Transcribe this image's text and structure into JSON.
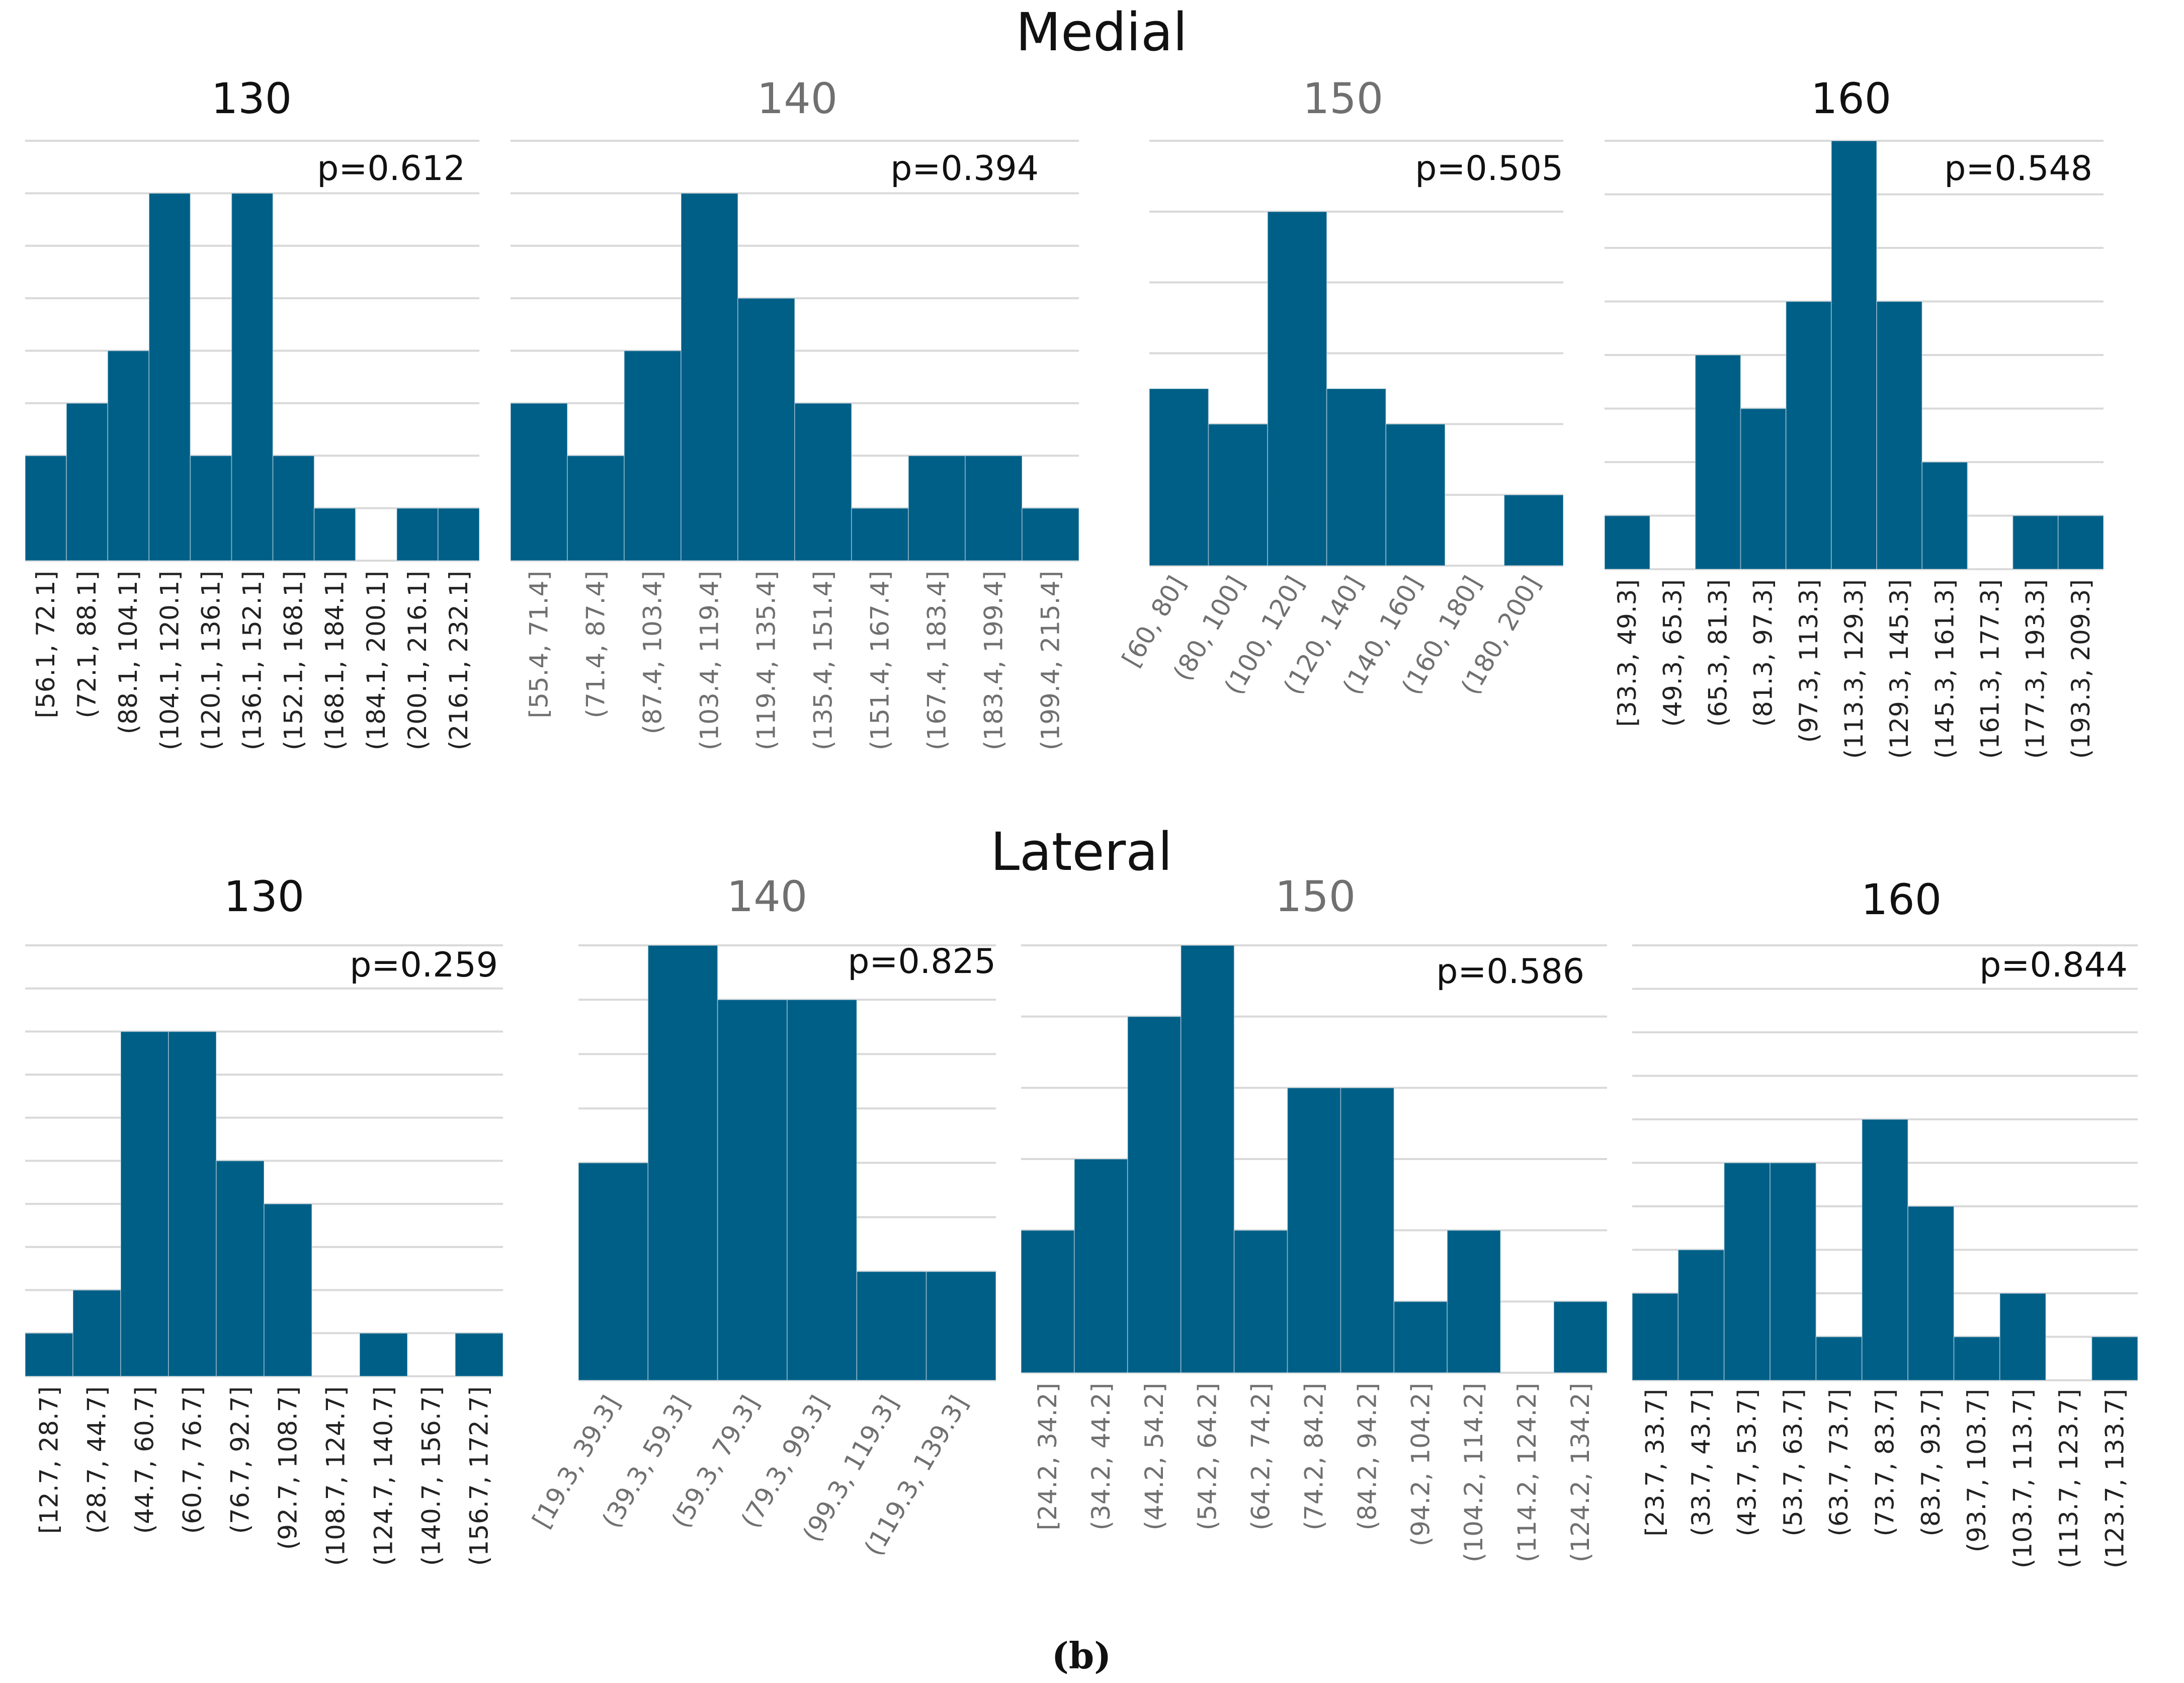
{
  "figure": {
    "caption_open": "(",
    "caption_letter": "b",
    "caption_close": ")"
  },
  "colors": {
    "bar": "#005f87",
    "grid": "#d9d9d9",
    "title_dark": "#111111",
    "title_gray": "#707070",
    "tick_dark": "#222222",
    "tick_gray": "#707070"
  },
  "sections": [
    {
      "title": "Medial"
    },
    {
      "title": "Lateral"
    }
  ],
  "chart_data": [
    {
      "type": "bar",
      "section": "Medial",
      "title": "130",
      "annotation": "p=0.612",
      "ylim": [
        0,
        8
      ],
      "grid": true,
      "categories": [
        "[56.1, 72.1]",
        "(72.1, 88.1]",
        "(88.1, 104.1]",
        "(104.1, 120.1]",
        "(120.1, 136.1]",
        "(136.1, 152.1]",
        "(152.1, 168.1]",
        "(168.1, 184.1]",
        "(184.1, 200.1]",
        "(200.1, 216.1]",
        "(216.1, 232.1]"
      ],
      "values": [
        2,
        3,
        4,
        7,
        2,
        7,
        2,
        1,
        0,
        1,
        1
      ]
    },
    {
      "type": "bar",
      "section": "Medial",
      "title": "140",
      "annotation": "p=0.394",
      "ylim": [
        0,
        8
      ],
      "grid": true,
      "categories": [
        "[55.4, 71.4]",
        "(71.4, 87.4]",
        "(87.4, 103.4]",
        "(103.4, 119.4]",
        "(119.4, 135.4]",
        "(135.4, 151.4]",
        "(151.4, 167.4]",
        "(167.4, 183.4]",
        "(183.4, 199.4]",
        "(199.4, 215.4]"
      ],
      "values": [
        3,
        2,
        4,
        7,
        5,
        3,
        1,
        2,
        2,
        1
      ]
    },
    {
      "type": "bar",
      "section": "Medial",
      "title": "150",
      "annotation": "p=0.505",
      "ylim": [
        0,
        6
      ],
      "grid": true,
      "categories": [
        "[60, 80]",
        "(80, 100]",
        "(100, 120]",
        "(120, 140]",
        "(140, 160]",
        "(160, 180]",
        "(180, 200]"
      ],
      "values": [
        2.5,
        2,
        5,
        2.5,
        2,
        0,
        1
      ]
    },
    {
      "type": "bar",
      "section": "Medial",
      "title": "160",
      "annotation": "p=0.548",
      "ylim": [
        0,
        8
      ],
      "grid": true,
      "categories": [
        "[33.3, 49.3]",
        "(49.3, 65.3]",
        "(65.3, 81.3]",
        "(81.3, 97.3]",
        "(97.3, 113.3]",
        "(113.3, 129.3]",
        "(129.3, 145.3]",
        "(145.3, 161.3]",
        "(161.3, 177.3]",
        "(177.3, 193.3]",
        "(193.3, 209.3]"
      ],
      "values": [
        1,
        0,
        4,
        3,
        5,
        8,
        5,
        2,
        0,
        1,
        1
      ]
    },
    {
      "type": "bar",
      "section": "Lateral",
      "title": "130",
      "annotation": "p=0.259",
      "ylim": [
        0,
        10
      ],
      "grid": true,
      "categories": [
        "[12.7, 28.7]",
        "(28.7, 44.7]",
        "(44.7, 60.7]",
        "(60.7, 76.7]",
        "(76.7, 92.7]",
        "(92.7, 108.7]",
        "(108.7, 124.7]",
        "(124.7, 140.7]",
        "(140.7, 156.7]",
        "(156.7, 172.7]"
      ],
      "values": [
        1,
        2,
        8,
        8,
        5,
        4,
        0,
        1,
        0,
        1
      ]
    },
    {
      "type": "bar",
      "section": "Lateral",
      "title": "140",
      "annotation": "p=0.825",
      "ylim": [
        0,
        8
      ],
      "grid": true,
      "categories": [
        "[19.3, 39.3]",
        "(39.3, 59.3]",
        "(59.3, 79.3]",
        "(79.3, 99.3]",
        "(99.3, 119.3]",
        "(119.3, 139.3]"
      ],
      "values": [
        4,
        8,
        7,
        7,
        2,
        2
      ]
    },
    {
      "type": "bar",
      "section": "Lateral",
      "title": "150",
      "annotation": "p=0.586",
      "ylim": [
        0,
        6
      ],
      "grid": true,
      "categories": [
        "[24.2, 34.2]",
        "(34.2, 44.2]",
        "(44.2, 54.2]",
        "(54.2, 64.2]",
        "(64.2, 74.2]",
        "(74.2, 84.2]",
        "(84.2, 94.2]",
        "(94.2, 104.2]",
        "(104.2, 114.2]",
        "(114.2, 124.2]",
        "(124.2, 134.2]"
      ],
      "values": [
        2,
        3,
        5,
        6,
        2,
        4,
        4,
        1,
        2,
        0,
        1
      ]
    },
    {
      "type": "bar",
      "section": "Lateral",
      "title": "160",
      "annotation": "p=0.844",
      "ylim": [
        0,
        10
      ],
      "grid": true,
      "categories": [
        "[23.7, 33.7]",
        "(33.7, 43.7]",
        "(43.7, 53.7]",
        "(53.7, 63.7]",
        "(63.7, 73.7]",
        "(73.7, 83.7]",
        "(83.7, 93.7]",
        "(93.7, 103.7]",
        "(103.7, 113.7]",
        "(113.7, 123.7]",
        "(123.7, 133.7]"
      ],
      "values": [
        2,
        3,
        5,
        5,
        1,
        6,
        4,
        1,
        2,
        0,
        1
      ]
    }
  ]
}
